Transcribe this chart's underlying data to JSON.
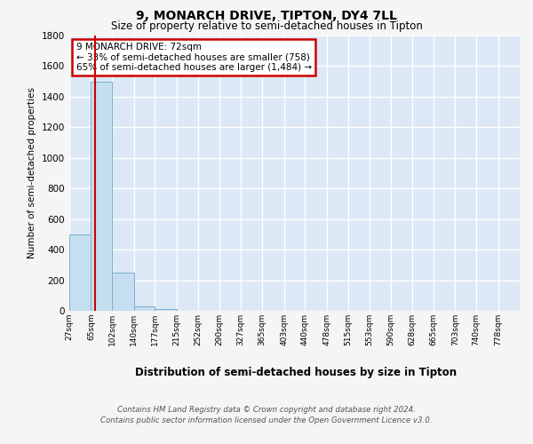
{
  "title": "9, MONARCH DRIVE, TIPTON, DY4 7LL",
  "subtitle": "Size of property relative to semi-detached houses in Tipton",
  "xlabel": "Distribution of semi-detached houses by size in Tipton",
  "ylabel": "Number of semi-detached properties",
  "footer_line1": "Contains HM Land Registry data © Crown copyright and database right 2024.",
  "footer_line2": "Contains public sector information licensed under the Open Government Licence v3.0.",
  "bar_edges": [
    27,
    65,
    102,
    140,
    177,
    215,
    252,
    290,
    327,
    365,
    403,
    440,
    478,
    515,
    553,
    590,
    628,
    665,
    703,
    740,
    778
  ],
  "bar_heights": [
    500,
    1500,
    250,
    30,
    10,
    2,
    1,
    0,
    0,
    0,
    0,
    0,
    0,
    0,
    0,
    0,
    0,
    0,
    0,
    0
  ],
  "bar_color": "#c6dff0",
  "bar_edge_color": "#7ab0cc",
  "property_line_x": 72,
  "property_line_color": "#cc0000",
  "annotation_title": "9 MONARCH DRIVE: 72sqm",
  "annotation_line1": "← 33% of semi-detached houses are smaller (758)",
  "annotation_line2": "65% of semi-detached houses are larger (1,484) →",
  "annotation_box_color": "#cc0000",
  "annotation_bg_color": "#ffffff",
  "ylim": [
    0,
    1800
  ],
  "yticks": [
    0,
    200,
    400,
    600,
    800,
    1000,
    1200,
    1400,
    1600,
    1800
  ],
  "bg_color": "#f5f5f5",
  "plot_bg_color": "#dce8f5",
  "grid_color": "#ffffff",
  "title_fontsize": 10,
  "subtitle_fontsize": 8.5
}
